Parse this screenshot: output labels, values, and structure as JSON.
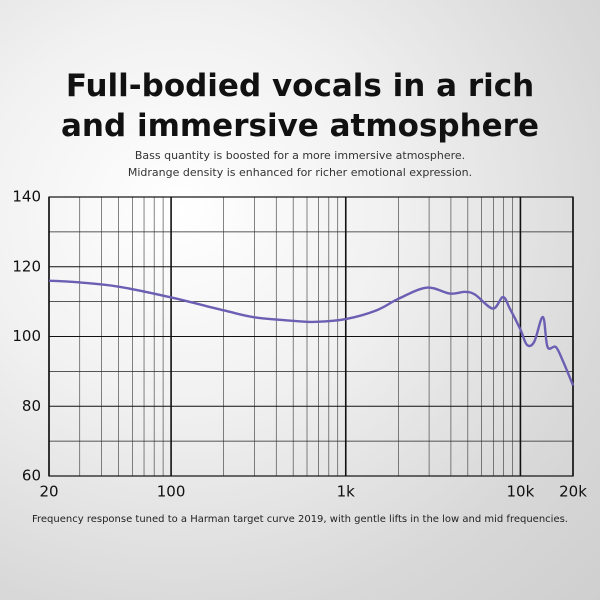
{
  "chart_data": {
    "type": "line",
    "log_x": true,
    "title": "Full-bodied vocals in a rich and immersive atmosphere",
    "subtitle": [
      "Bass quantity is boosted for a more immersive atmosphere.",
      "Midrange density is enhanced for richer emotional expression."
    ],
    "caption": "Frequency response tuned to a Harman target curve 2019, with gentle lifts in the low and mid frequencies.",
    "x": [
      20,
      30,
      50,
      100,
      200,
      300,
      500,
      675,
      1000,
      1500,
      2000,
      2900,
      3950,
      4800,
      5500,
      6950,
      7940,
      8700,
      10000,
      10900,
      12000,
      13450,
      14300,
      15950,
      17500,
      20000
    ],
    "series": [
      {
        "color": "#6a5fb3",
        "values": [
          116,
          115.5,
          114.3,
          111.2,
          107.5,
          105.5,
          104.5,
          104.2,
          105,
          107.5,
          110.8,
          114,
          112.3,
          112.8,
          112,
          108,
          111.3,
          108,
          102,
          97.6,
          98.5,
          105.6,
          97,
          97,
          93,
          86
        ]
      }
    ],
    "xlim": [
      20,
      20000
    ],
    "xticks": [
      20,
      100,
      {
        "value": 1000,
        "label": "1k"
      },
      {
        "value": 10000,
        "label": "10k"
      },
      {
        "value": 20000,
        "label": "20k"
      }
    ],
    "xminorticks": [
      30,
      40,
      50,
      60,
      70,
      80,
      90,
      200,
      300,
      400,
      500,
      600,
      700,
      800,
      900,
      2000,
      3000,
      4000,
      5000,
      6000,
      7000,
      8000,
      9000
    ],
    "ylim": [
      60,
      140
    ],
    "yticks": [
      60,
      80,
      100,
      120,
      140
    ],
    "yminorticks": [
      70,
      90,
      110,
      130
    ],
    "grid": true
  }
}
